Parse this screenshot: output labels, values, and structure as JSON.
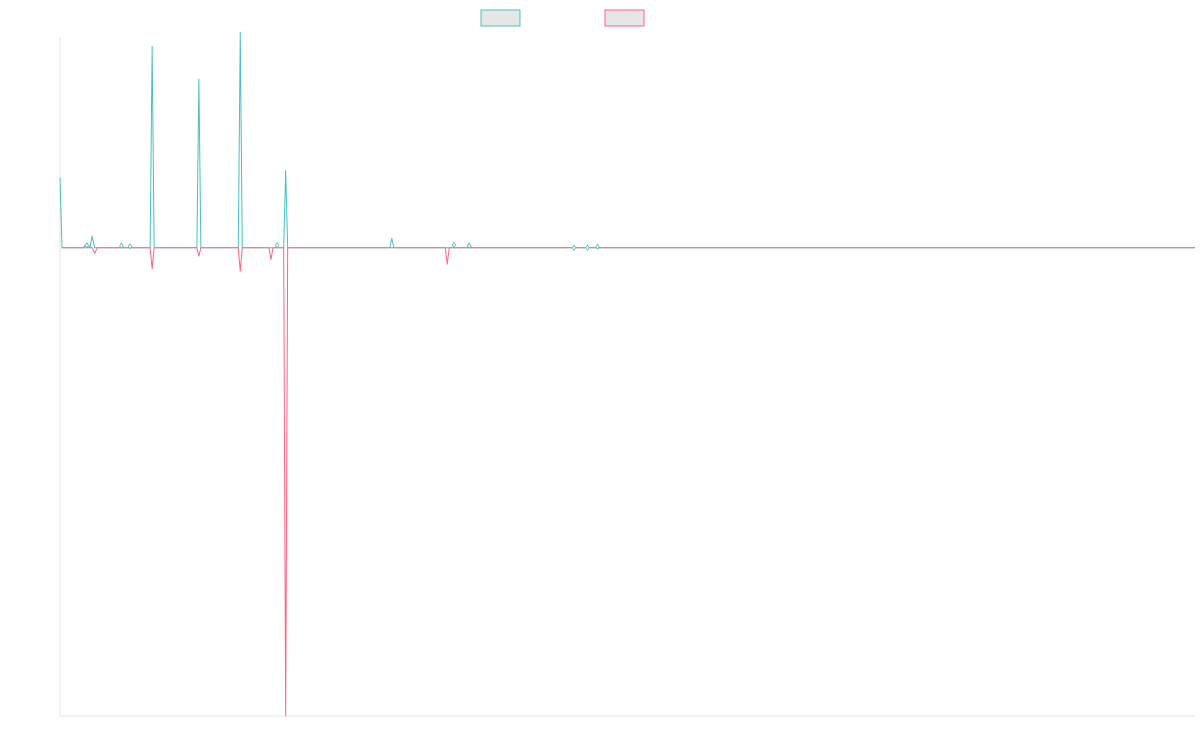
{
  "chart_data": {
    "type": "line",
    "title": "",
    "xlabel": "",
    "ylabel": "",
    "grid": false,
    "legend_placement": "top-center",
    "x_range": [
      0,
      170
    ],
    "ylim": [
      -1,
      0.45
    ],
    "colors": {
      "series_a": "#4bc0c0",
      "series_b": "#ff6384",
      "legend_fill": "#e6e6e6",
      "axis": "#e5e5e5"
    },
    "series": [
      {
        "name": "",
        "color": "#4bc0c0",
        "points": [
          [
            0,
            0.15
          ],
          [
            0.3,
            0
          ],
          [
            3.5,
            0
          ],
          [
            4,
            0.01
          ],
          [
            4.5,
            0
          ],
          [
            4.8,
            0.025
          ],
          [
            5.2,
            0
          ],
          [
            9,
            0
          ],
          [
            9.2,
            0.01
          ],
          [
            9.5,
            0
          ],
          [
            10.2,
            0
          ],
          [
            10.5,
            0.005
          ],
          [
            10.8,
            0
          ],
          [
            13.5,
            0
          ],
          [
            13.8,
            0.43
          ],
          [
            14.1,
            0
          ],
          [
            20.5,
            0
          ],
          [
            20.8,
            0.36
          ],
          [
            21.1,
            0
          ],
          [
            26.7,
            0
          ],
          [
            27,
            0.46
          ],
          [
            27.3,
            0
          ],
          [
            33.5,
            0
          ],
          [
            33.8,
            0.165
          ],
          [
            34.1,
            0
          ],
          [
            49.4,
            0
          ],
          [
            49.7,
            0.02
          ],
          [
            50,
            0
          ],
          [
            61,
            0
          ],
          [
            61.3,
            0.01
          ],
          [
            61.6,
            0
          ],
          [
            170,
            0
          ]
        ]
      },
      {
        "name": "",
        "color": "#ff6384",
        "points": [
          [
            0.3,
            0
          ],
          [
            4.8,
            0
          ],
          [
            5.2,
            -0.012
          ],
          [
            5.6,
            0
          ],
          [
            13.5,
            0
          ],
          [
            13.8,
            -0.045
          ],
          [
            14.1,
            0
          ],
          [
            20.5,
            0
          ],
          [
            20.8,
            -0.018
          ],
          [
            21.1,
            0
          ],
          [
            26.7,
            0
          ],
          [
            27,
            -0.05
          ],
          [
            27.3,
            0
          ],
          [
            31.3,
            0
          ],
          [
            31.6,
            -0.025
          ],
          [
            31.9,
            0
          ],
          [
            33.5,
            0
          ],
          [
            33.8,
            -1.0
          ],
          [
            34.1,
            0
          ],
          [
            57.7,
            0
          ],
          [
            58,
            -0.035
          ],
          [
            58.3,
            0
          ],
          [
            170,
            0
          ]
        ]
      }
    ],
    "markers": [
      [
        4,
        0.005
      ],
      [
        9.2,
        0.004
      ],
      [
        10.5,
        0.003
      ],
      [
        32.5,
        0.005
      ],
      [
        59,
        0.006
      ],
      [
        61.3,
        0.004
      ],
      [
        77,
        0
      ],
      [
        79,
        0
      ],
      [
        80.5,
        0.002
      ]
    ]
  }
}
